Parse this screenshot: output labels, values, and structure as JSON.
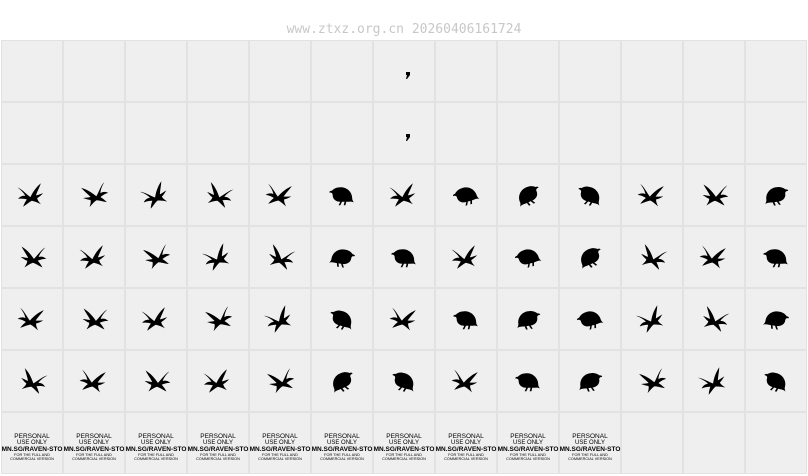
{
  "header": {
    "watermark": "www.ztxz.org.cn 20260406161724"
  },
  "notice": {
    "lines": [
      "PERSONAL",
      "USE ONLY",
      "MN.SG/RAVEN-STO",
      "FOR THE FULL AND",
      "COMMERCIAL VERSION"
    ]
  }
}
